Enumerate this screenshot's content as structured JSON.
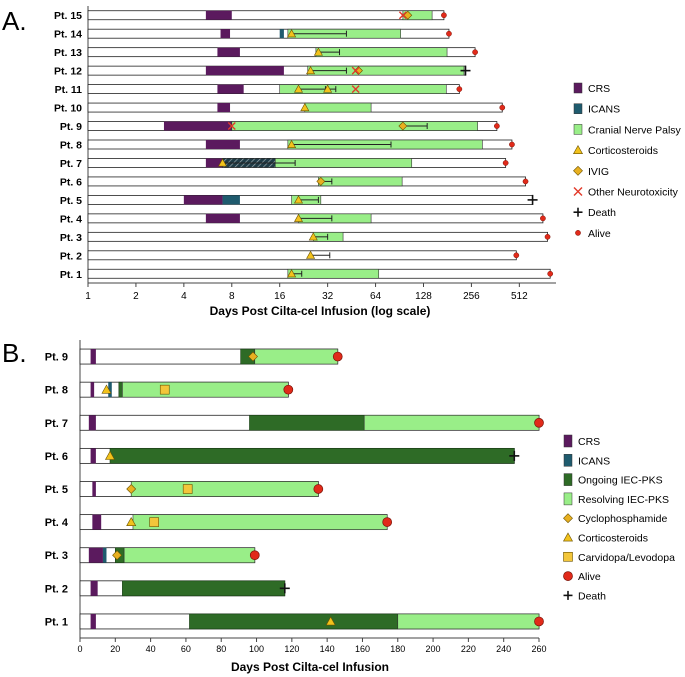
{
  "colors": {
    "bar_fill": "#ffffff",
    "bar_stroke": "#222222",
    "crs": "#5b1a5e",
    "icans": "#1f5b6e",
    "cnp": "#99ee88",
    "ongoing": "#2e6b26",
    "resolving": "#99ee88",
    "cortico": "#f2c21c",
    "ivig": "#e8b020",
    "cyclo": "#e8b020",
    "carbi": "#f3c63a",
    "neurotox": "#e23a2a",
    "alive": "#e12a1a",
    "death": "#111111"
  },
  "chart_data": [
    {
      "id": "A",
      "panel_label": "A.",
      "type": "bar",
      "scale": "log2",
      "xlabel": "Days Post Cilta-cel Infusion (log scale)",
      "xlim": [
        1,
        870
      ],
      "ticks": [
        1,
        2,
        4,
        8,
        16,
        32,
        64,
        128,
        256,
        512
      ],
      "tick_labels": [
        "1",
        "2",
        "4",
        "8",
        "16",
        "32",
        "64",
        "128",
        "256",
        "512"
      ],
      "legend": [
        {
          "name": "CRS",
          "kind": "crs"
        },
        {
          "name": "ICANS",
          "kind": "icans"
        },
        {
          "name": "Cranial Nerve Palsy",
          "kind": "cnp"
        },
        {
          "name": "Corticosteroids",
          "kind": "cortico"
        },
        {
          "name": "IVIG",
          "kind": "ivig"
        },
        {
          "name": "Other Neurotoxicity",
          "kind": "neurotox"
        },
        {
          "name": "Death",
          "kind": "death"
        },
        {
          "name": "Alive",
          "kind": "alive"
        }
      ],
      "patients": [
        {
          "label": "Pt. 15",
          "end": 172,
          "status": "alive",
          "crs": [
            [
              5.5,
              8
            ]
          ],
          "cnp": [
            [
              95,
              145
            ]
          ],
          "cortico": [],
          "ivig": [
            {
              "x": 102
            }
          ],
          "neurotox": [
            95
          ]
        },
        {
          "label": "Pt. 14",
          "end": 185,
          "status": "alive",
          "crs": [
            [
              6.8,
              7.8
            ]
          ],
          "icans": [
            [
              16,
              17
            ]
          ],
          "cnp": [
            [
              18,
              92
            ]
          ],
          "cortico": [
            {
              "x": 19,
              "e": 42
            }
          ]
        },
        {
          "label": "Pt. 13",
          "end": 270,
          "status": "alive",
          "crs": [
            [
              6.5,
              9
            ]
          ],
          "cnp": [
            [
              27,
              180
            ]
          ],
          "cortico": [
            {
              "x": 28,
              "e": 38
            }
          ]
        },
        {
          "label": "Pt. 12",
          "end": 235,
          "status": "death",
          "crs": [
            [
              5.5,
              17
            ]
          ],
          "cnp": [
            [
              24,
              230
            ]
          ],
          "cortico": [
            {
              "x": 25,
              "e": 42
            }
          ],
          "ivig": [
            {
              "x": 50
            }
          ],
          "neurotox": [
            48
          ]
        },
        {
          "label": "Pt. 11",
          "end": 215,
          "status": "alive",
          "crs": [
            [
              6.5,
              9.5
            ]
          ],
          "cnp": [
            [
              16,
              178
            ]
          ],
          "cortico": [
            {
              "x": 21,
              "e": 31
            },
            {
              "x": 32,
              "e": 36
            }
          ],
          "neurotox": [
            48
          ]
        },
        {
          "label": "Pt. 10",
          "end": 400,
          "status": "alive",
          "crs": [
            [
              6.5,
              7.8
            ]
          ],
          "cnp": [
            [
              23,
              60
            ]
          ],
          "cortico": [
            {
              "x": 23
            }
          ]
        },
        {
          "label": "Pt. 9",
          "end": 370,
          "status": "alive",
          "crs": [
            [
              3,
              8
            ]
          ],
          "cnp": [
            [
              8,
              280
            ]
          ],
          "cortico": [],
          "ivig": [
            {
              "x": 95,
              "e": 135
            }
          ],
          "neurotox": [
            8
          ]
        },
        {
          "label": "Pt. 8",
          "end": 460,
          "status": "alive",
          "crs": [
            [
              5.5,
              9
            ]
          ],
          "cnp": [
            [
              18,
              300
            ]
          ],
          "cortico": [
            {
              "x": 19,
              "e": 80
            }
          ]
        },
        {
          "label": "Pt. 7",
          "end": 420,
          "status": "alive",
          "crs": [
            [
              5.5,
              7
            ]
          ],
          "hatch": [
            [
              7,
              15
            ]
          ],
          "cnp": [
            [
              15,
              108
            ]
          ],
          "cortico": [
            {
              "x": 7,
              "e": 20
            }
          ]
        },
        {
          "label": "Pt. 6",
          "end": 560,
          "status": "alive",
          "crs": [],
          "cnp": [
            [
              28,
              94
            ]
          ],
          "cortico": [],
          "ivig": [
            {
              "x": 29,
              "e": 34
            }
          ]
        },
        {
          "label": "Pt. 5",
          "end": 620,
          "status": "death",
          "crs": [
            [
              4,
              7
            ]
          ],
          "icans": [
            [
              7,
              9
            ]
          ],
          "cnp": [
            [
              19,
              29
            ]
          ],
          "cortico": [
            {
              "x": 21,
              "e": 28
            }
          ]
        },
        {
          "label": "Pt. 4",
          "end": 720,
          "status": "alive",
          "crs": [
            [
              5.5,
              9
            ]
          ],
          "cnp": [
            [
              21,
              60
            ]
          ],
          "cortico": [
            {
              "x": 21,
              "e": 34
            }
          ]
        },
        {
          "label": "Pt. 3",
          "end": 770,
          "status": "alive",
          "crs": [],
          "cnp": [
            [
              26,
              40
            ]
          ],
          "cortico": [
            {
              "x": 26,
              "e": 32
            }
          ]
        },
        {
          "label": "Pt. 2",
          "end": 490,
          "status": "alive",
          "crs": [],
          "cnp": [],
          "cortico": [
            {
              "x": 25,
              "e": 33
            }
          ]
        },
        {
          "label": "Pt. 1",
          "end": 800,
          "status": "alive",
          "crs": [],
          "hatch": [
            [
              26,
              32
            ]
          ],
          "cnp": [
            [
              18,
              67
            ]
          ],
          "cortico": [
            {
              "x": 19,
              "e": 22
            }
          ]
        }
      ]
    },
    {
      "id": "B",
      "panel_label": "B.",
      "type": "bar",
      "scale": "linear",
      "xlabel": "Days Post Cilta-cel Infusion",
      "xlim": [
        0,
        260
      ],
      "ticks": [
        0,
        20,
        40,
        60,
        80,
        100,
        120,
        140,
        160,
        180,
        200,
        220,
        240,
        260
      ],
      "tick_labels": [
        "0",
        "20",
        "40",
        "60",
        "80",
        "100",
        "120",
        "140",
        "160",
        "180",
        "200",
        "220",
        "240",
        "260"
      ],
      "legend": [
        {
          "name": "CRS",
          "kind": "crs"
        },
        {
          "name": "ICANS",
          "kind": "icans"
        },
        {
          "name": "Ongoing IEC-PKS",
          "kind": "ongoing"
        },
        {
          "name": "Resolving IEC-PKS",
          "kind": "resolving"
        },
        {
          "name": "Cyclophosphamide",
          "kind": "cyclo"
        },
        {
          "name": "Corticosteroids",
          "kind": "cortico"
        },
        {
          "name": "Carvidopa/Levodopa",
          "kind": "carbi"
        },
        {
          "name": "Alive",
          "kind": "alive"
        },
        {
          "name": "Death",
          "kind": "death"
        }
      ],
      "patients": [
        {
          "label": "Pt. 9",
          "end": 146,
          "status": "alive",
          "crs": [
            [
              6,
              9
            ]
          ],
          "ongoing": [
            [
              91,
              99
            ]
          ],
          "resolving": [
            [
              99,
              146
            ]
          ],
          "cyclo": [
            98
          ]
        },
        {
          "label": "Pt. 8",
          "end": 118,
          "status": "alive",
          "crs": [
            [
              6,
              8
            ]
          ],
          "icans": [
            [
              16,
              18
            ]
          ],
          "ongoing": [
            [
              22,
              24
            ]
          ],
          "resolving": [
            [
              24,
              118
            ]
          ],
          "cortico": [
            15
          ],
          "carbi": [
            48
          ]
        },
        {
          "label": "Pt. 7",
          "end": 260,
          "status": "alive",
          "crs": [
            [
              5,
              9
            ]
          ],
          "ongoing": [
            [
              96,
              161
            ]
          ],
          "resolving": [
            [
              161,
              260
            ]
          ]
        },
        {
          "label": "Pt. 6",
          "end": 246,
          "status": "death",
          "crs": [
            [
              6,
              9
            ]
          ],
          "ongoing": [
            [
              17,
              246
            ]
          ],
          "cortico": [
            17
          ]
        },
        {
          "label": "Pt. 5",
          "end": 135,
          "status": "alive",
          "crs": [
            [
              7,
              9
            ]
          ],
          "resolving": [
            [
              29,
              135
            ]
          ],
          "cyclo": [
            29
          ],
          "carbi": [
            61
          ]
        },
        {
          "label": "Pt. 4",
          "end": 174,
          "status": "alive",
          "crs": [
            [
              7,
              12
            ]
          ],
          "resolving": [
            [
              30,
              174
            ]
          ],
          "cortico": [
            29
          ],
          "carbi": [
            42
          ]
        },
        {
          "label": "Pt. 3",
          "end": 99,
          "status": "alive",
          "crs": [
            [
              5,
              13
            ]
          ],
          "icans": [
            [
              13,
              15
            ]
          ],
          "ongoing": [
            [
              20,
              25
            ]
          ],
          "resolving": [
            [
              25,
              99
            ]
          ],
          "cyclo": [
            21
          ]
        },
        {
          "label": "Pt. 2",
          "end": 116,
          "status": "death",
          "crs": [
            [
              6,
              10
            ]
          ],
          "ongoing": [
            [
              24,
              116
            ]
          ]
        },
        {
          "label": "Pt. 1",
          "end": 260,
          "status": "alive",
          "crs": [
            [
              6,
              9
            ]
          ],
          "ongoing": [
            [
              62,
              180
            ]
          ],
          "resolving": [
            [
              180,
              260
            ]
          ],
          "cortico": [
            142
          ]
        }
      ]
    }
  ]
}
